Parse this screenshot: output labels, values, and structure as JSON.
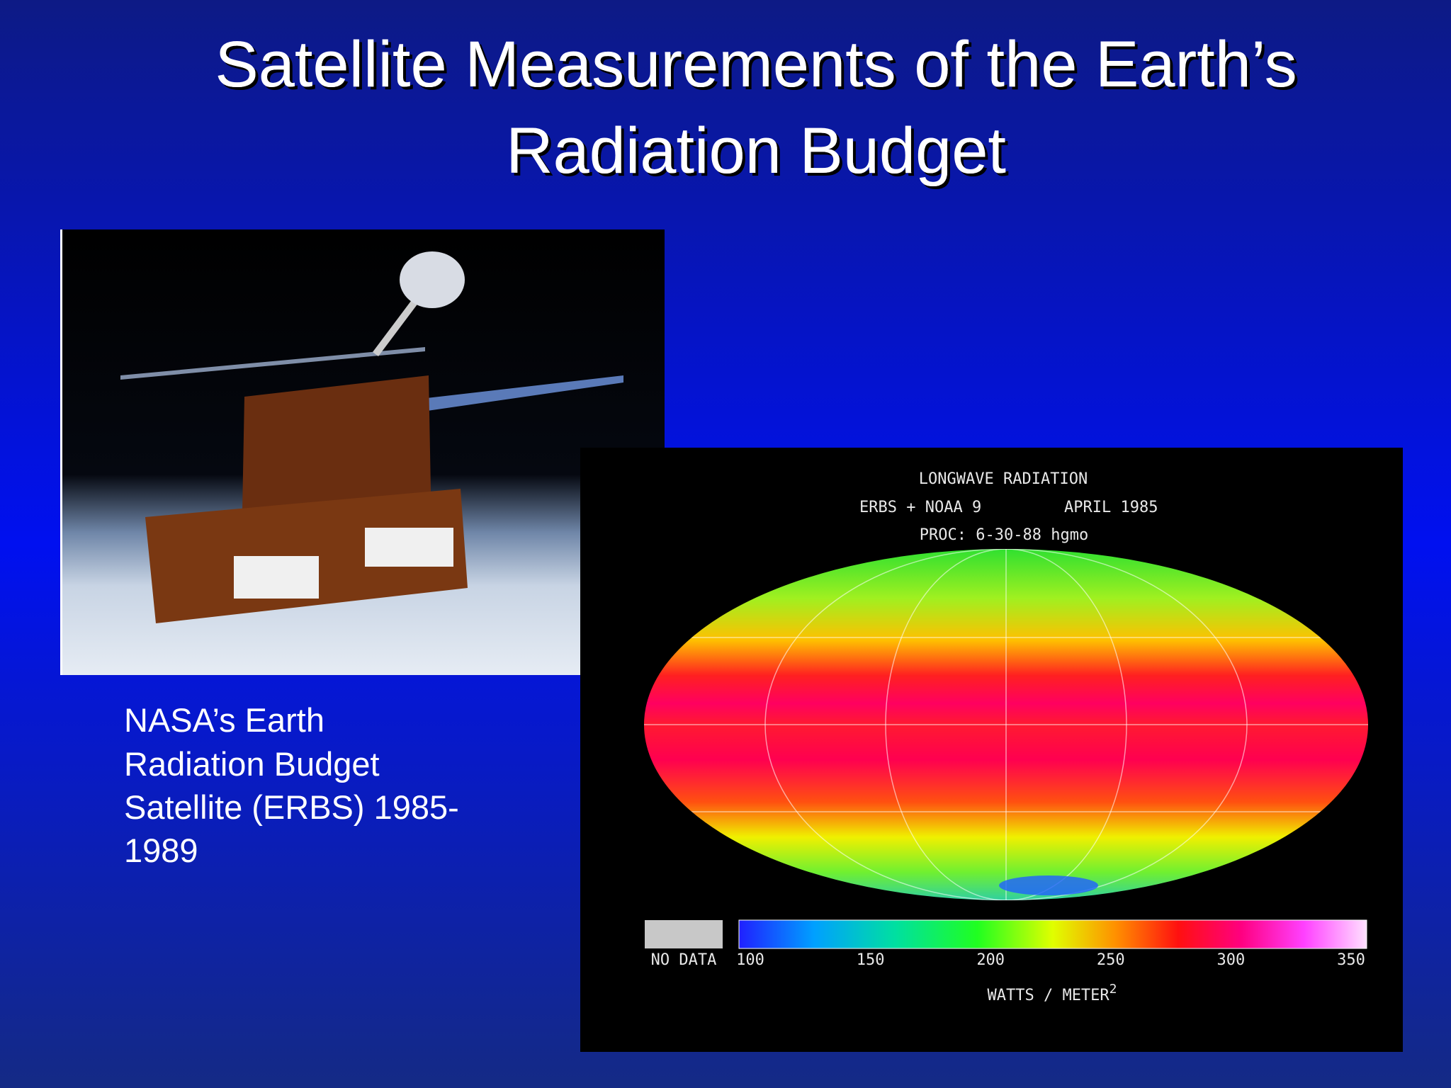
{
  "title": {
    "line1": "Satellite Measurements of the Earth’s",
    "line2": "Radiation Budget"
  },
  "caption": {
    "lines": [
      "NASA’s Earth",
      "Radiation Budget",
      "Satellite (ERBS) 1985-",
      "1989"
    ]
  },
  "map": {
    "title": "LONGWAVE RADIATION",
    "source": "ERBS + NOAA 9",
    "date": "APRIL 1985",
    "proc": "PROC: 6-30-88 hgmo",
    "no_data": "NO DATA",
    "colorbar": {
      "ticks": [
        100,
        150,
        200,
        250,
        300,
        350
      ],
      "unit": "WATTS / METER",
      "unit_sup": "2"
    }
  }
}
